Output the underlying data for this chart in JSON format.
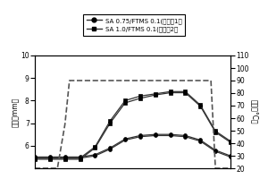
{
  "x_points": [
    0,
    1,
    2,
    3,
    4,
    5,
    6,
    7,
    8,
    9,
    10,
    11,
    12,
    13
  ],
  "series1_circle_a": [
    5.45,
    5.45,
    5.45,
    5.45,
    5.55,
    5.85,
    6.25,
    6.4,
    6.45,
    6.45,
    6.4,
    6.2,
    5.75,
    5.5
  ],
  "series1_circle_b": [
    5.5,
    5.5,
    5.5,
    5.5,
    5.6,
    5.9,
    6.3,
    6.45,
    6.5,
    6.5,
    6.45,
    6.25,
    5.8,
    5.55
  ],
  "series2_square_a": [
    5.4,
    5.4,
    5.4,
    5.4,
    5.9,
    7.0,
    7.9,
    8.1,
    8.25,
    8.35,
    8.35,
    7.75,
    6.6,
    6.15
  ],
  "series2_square_b": [
    5.45,
    5.45,
    5.45,
    5.45,
    5.95,
    7.1,
    8.0,
    8.2,
    8.3,
    8.4,
    8.4,
    7.8,
    6.65,
    6.2
  ],
  "temp_x": [
    0,
    1.5,
    2.0,
    2.3,
    11.7,
    12.0,
    13
  ],
  "temp_y": [
    20,
    20,
    55,
    90,
    90,
    20,
    20
  ],
  "ylim_left": [
    5,
    10
  ],
  "ylim_right": [
    20,
    110
  ],
  "yticks_left": [
    6,
    7,
    8,
    9,
    10
  ],
  "yticks_right": [
    20,
    30,
    40,
    50,
    60,
    70,
    80,
    90,
    100,
    110
  ],
  "ylabel_left": "厚度（mm）",
  "ylabel_right": "温度（°C）",
  "legend1": "SA 0.75/FTMS 0.1(实施例1）",
  "legend2": "SA 1.0/FTMS 0.1(实施例2）",
  "line_color": "#333333",
  "temp_color": "#555555",
  "bg_color": "#ffffff",
  "figsize": [
    3.0,
    2.0
  ],
  "dpi": 100
}
